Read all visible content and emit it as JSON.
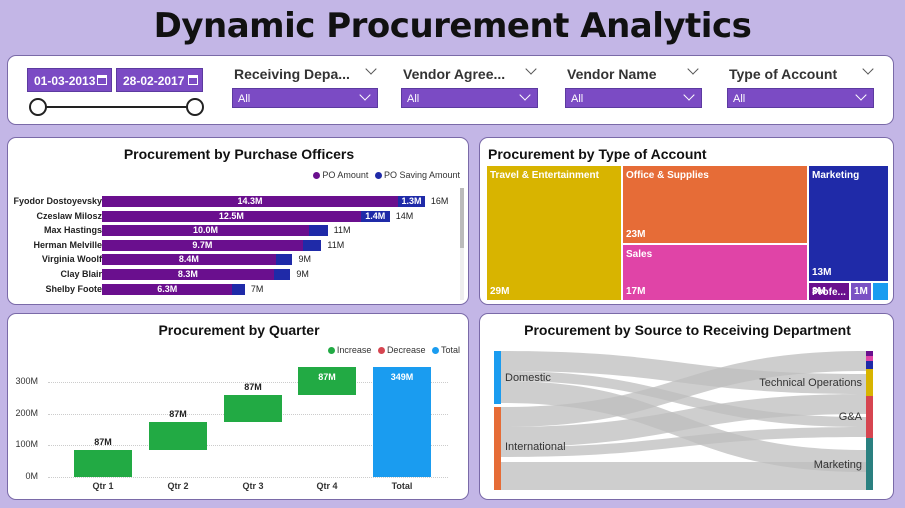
{
  "title": "Dynamic Procurement Analytics",
  "date_range": {
    "start": "01-03-2013",
    "end": "28-02-2017"
  },
  "filters": [
    {
      "label": "Receiving Depa...",
      "value": "All"
    },
    {
      "label": "Vendor Agree...",
      "value": "All"
    },
    {
      "label": "Vendor Name",
      "value": "All"
    },
    {
      "label": "Type of Account",
      "value": "All"
    }
  ],
  "officers_chart": {
    "title": "Procurement by Purchase Officers",
    "legend": [
      "PO Amount",
      "PO Saving Amount"
    ],
    "colors": {
      "amount": "#6a0f8e",
      "saving": "#1f2aa8"
    },
    "rows": [
      {
        "name": "Fyodor Dostoyevsky",
        "amount": 14.3,
        "amount_label": "14.3M",
        "saving": 1.3,
        "saving_label": "1.3M",
        "total_label": "16M"
      },
      {
        "name": "Czeslaw Milosz",
        "amount": 12.5,
        "amount_label": "12.5M",
        "saving": 1.4,
        "saving_label": "1.4M",
        "total_label": "14M"
      },
      {
        "name": "Max Hastings",
        "amount": 10.0,
        "amount_label": "10.0M",
        "saving": 0.9,
        "saving_label": "",
        "total_label": "11M"
      },
      {
        "name": "Herman Melville",
        "amount": 9.7,
        "amount_label": "9.7M",
        "saving": 0.9,
        "saving_label": "",
        "total_label": "11M"
      },
      {
        "name": "Virginia Woolf",
        "amount": 8.4,
        "amount_label": "8.4M",
        "saving": 0.8,
        "saving_label": "",
        "total_label": "9M"
      },
      {
        "name": "Clay Blair",
        "amount": 8.3,
        "amount_label": "8.3M",
        "saving": 0.8,
        "saving_label": "",
        "total_label": "9M"
      },
      {
        "name": "Shelby Foote",
        "amount": 6.3,
        "amount_label": "6.3M",
        "saving": 0.6,
        "saving_label": "",
        "total_label": "7M"
      }
    ]
  },
  "account_chart": {
    "title": "Procurement by Type of Account",
    "tiles": [
      {
        "name": "Travel & Entertainment",
        "value_label": "29M",
        "color": "#d8b400"
      },
      {
        "name": "Office & Supplies",
        "value_label": "23M",
        "color": "#e66c37"
      },
      {
        "name": "Sales",
        "value_label": "17M",
        "color": "#e044a7"
      },
      {
        "name": "Marketing",
        "value_label": "13M",
        "color": "#1f2aa8"
      },
      {
        "name": "Profe...",
        "value_label": "3M",
        "color": "#6a0f8e"
      },
      {
        "name": "",
        "value_label": "1M",
        "color": "#7a52c4"
      },
      {
        "name": "",
        "value_label": "",
        "color": "#1a9cf0"
      }
    ]
  },
  "quarter_chart": {
    "title": "Procurement by Quarter",
    "legend": [
      "Increase",
      "Decrease",
      "Total"
    ],
    "colors": {
      "increase": "#22aa44",
      "decrease": "#d64550",
      "total": "#1a9cf0"
    },
    "yticks": [
      "300M",
      "200M",
      "100M",
      "0M"
    ]
  },
  "chart_data": {
    "type": "bar",
    "subtype": "waterfall",
    "categories": [
      "Qtr 1",
      "Qtr 2",
      "Qtr 3",
      "Qtr 4",
      "Total"
    ],
    "values": [
      87,
      87,
      87,
      87,
      349
    ],
    "labels": [
      "87M",
      "87M",
      "87M",
      "87M",
      "349M"
    ],
    "kinds": [
      "increase",
      "increase",
      "increase",
      "increase",
      "total"
    ],
    "ylim": [
      0,
      360
    ]
  },
  "sankey_chart": {
    "title": "Procurement by Source to Receiving Department",
    "sources": [
      "Domestic",
      "International"
    ],
    "targets": [
      "Technical Operations",
      "G&A",
      "Marketing"
    ]
  }
}
